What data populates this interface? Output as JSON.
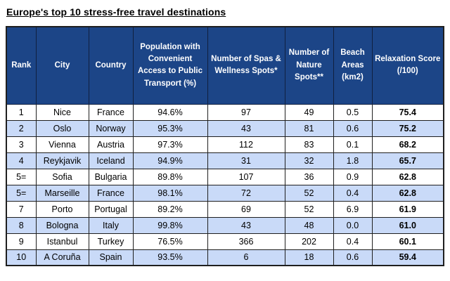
{
  "page_title": "Europe's top 10 stress-free travel destinations",
  "colors": {
    "header_bg": "#1C4587",
    "header_text": "#FFFFFF",
    "row_bg": "#FFFFFF",
    "row_alt_bg": "#C9DAF8",
    "body_text": "#000000",
    "border": "#1F1F1F"
  },
  "chart_data": {
    "type": "table",
    "title": "Europe's top 10 stress-free travel destinations",
    "columns": [
      "Rank",
      "City",
      "Country",
      "Population with Convenient Access to Public Transport (%)",
      "Number of Spas & Wellness Spots*",
      "Number of Nature Spots**",
      "Beach Areas (km2)",
      "Relaxation Score (/100)"
    ],
    "rows": [
      [
        "1",
        "Nice",
        "France",
        "94.6%",
        "97",
        "49",
        "0.5",
        "75.4"
      ],
      [
        "2",
        "Oslo",
        "Norway",
        "95.3%",
        "43",
        "81",
        "0.6",
        "75.2"
      ],
      [
        "3",
        "Vienna",
        "Austria",
        "97.3%",
        "112",
        "83",
        "0.1",
        "68.2"
      ],
      [
        "4",
        "Reykjavik",
        "Iceland",
        "94.9%",
        "31",
        "32",
        "1.8",
        "65.7"
      ],
      [
        "5=",
        "Sofia",
        "Bulgaria",
        "89.8%",
        "107",
        "36",
        "0.9",
        "62.8"
      ],
      [
        "5=",
        "Marseille",
        "France",
        "98.1%",
        "72",
        "52",
        "0.4",
        "62.8"
      ],
      [
        "7",
        "Porto",
        "Portugal",
        "89.2%",
        "69",
        "52",
        "6.9",
        "61.9"
      ],
      [
        "8",
        "Bologna",
        "Italy",
        "99.8%",
        "43",
        "48",
        "0.0",
        "61.0"
      ],
      [
        "9",
        "Istanbul",
        "Turkey",
        "76.5%",
        "366",
        "202",
        "0.4",
        "60.1"
      ],
      [
        "10",
        "A Coruña",
        "Spain",
        "93.5%",
        "6",
        "18",
        "0.6",
        "59.4"
      ]
    ]
  }
}
